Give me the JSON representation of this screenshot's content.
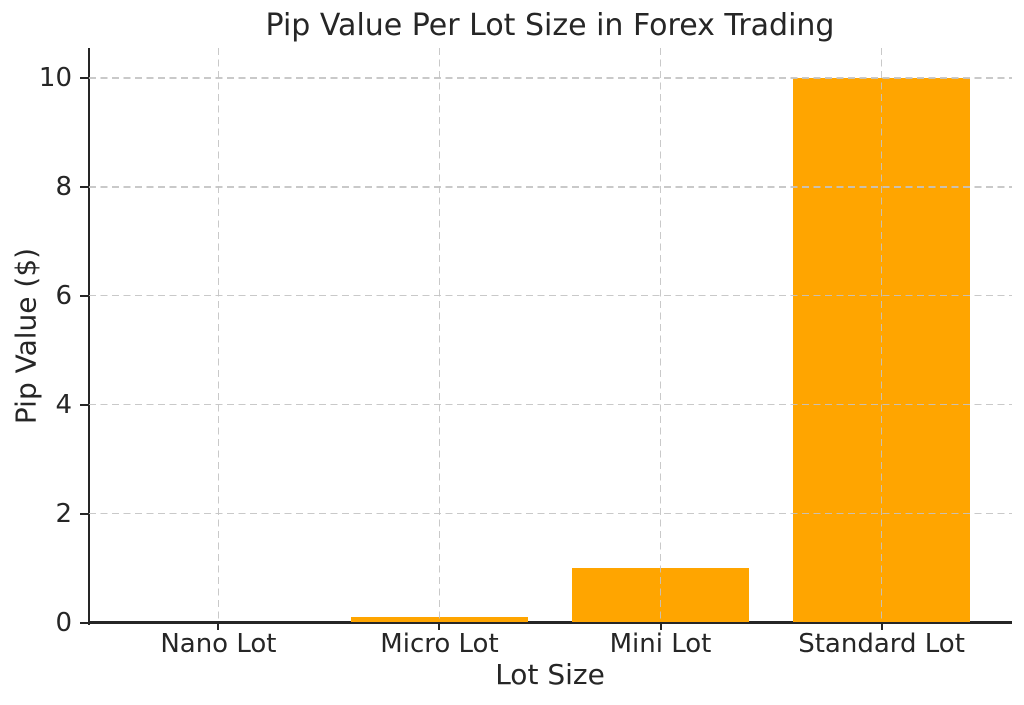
{
  "chart_data": {
    "type": "bar",
    "title": "Pip Value Per Lot Size in Forex Trading",
    "xlabel": "Lot Size",
    "ylabel": "Pip Value ($)",
    "categories": [
      "Nano Lot",
      "Micro Lot",
      "Mini Lot",
      "Standard Lot"
    ],
    "values": [
      0.001,
      0.1,
      1,
      10
    ],
    "yticks": [
      "0",
      "2",
      "4",
      "6",
      "8",
      "10"
    ],
    "ytick_values": [
      0,
      2,
      4,
      6,
      8,
      10
    ],
    "ylim": [
      0,
      10.55
    ],
    "bar_color": "#FFA500",
    "bar_width_fraction": 0.8,
    "grid": "on",
    "grid_style": "dashed",
    "grid_color": "#c3c3c3",
    "grid_position": "above-bars",
    "axis_color": "#262626",
    "text_color": "#262626",
    "background": "#ffffff",
    "legend": "none",
    "spines": [
      "left",
      "bottom"
    ]
  }
}
